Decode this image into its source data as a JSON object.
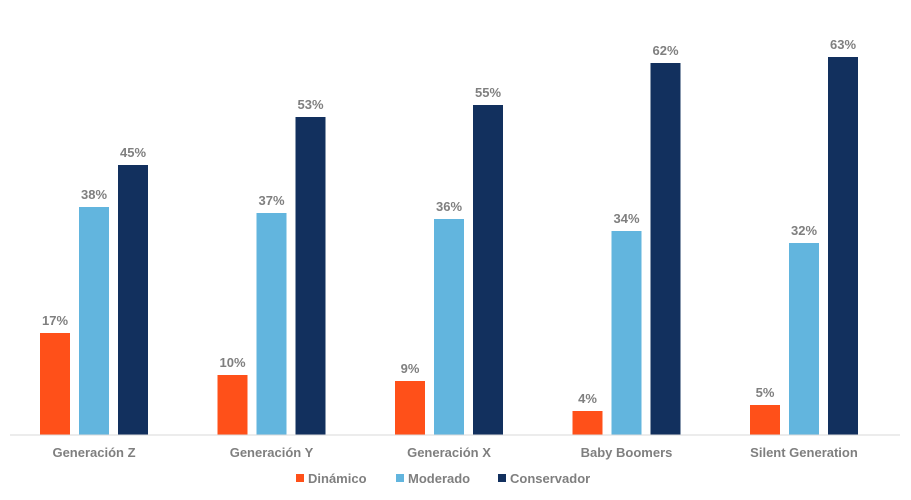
{
  "chart_data": {
    "type": "bar",
    "title": "",
    "xlabel": "",
    "ylabel": "",
    "ylim": [
      0,
      70
    ],
    "grid": false,
    "legend_position": "bottom",
    "value_suffix": "%",
    "categories": [
      "Generación Z",
      "Generación Y",
      "Generación X",
      "Baby Boomers",
      "Silent Generation"
    ],
    "series": [
      {
        "name": "Dinámico",
        "color": "#ff5019",
        "values": [
          17,
          10,
          9,
          4,
          5
        ]
      },
      {
        "name": "Moderado",
        "color": "#62b5de",
        "values": [
          38,
          37,
          36,
          34,
          32
        ]
      },
      {
        "name": "Conservador",
        "color": "#12305e",
        "values": [
          45,
          53,
          55,
          62,
          63
        ]
      }
    ]
  }
}
